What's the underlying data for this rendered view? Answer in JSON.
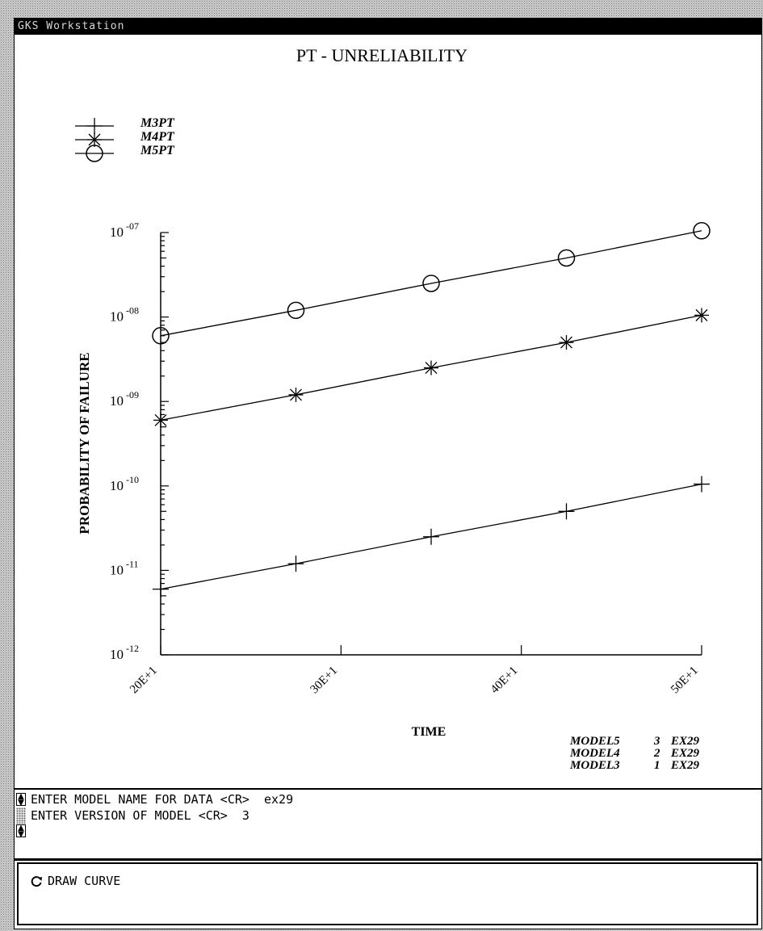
{
  "window": {
    "title": "GKS Workstation"
  },
  "chart_data": {
    "type": "line",
    "title": "PT - UNRELIABILITY",
    "xlabel": "TIME",
    "ylabel": "PROBABILITY OF FAILURE",
    "x_tick_labels": [
      "20E+1",
      "30E+1",
      "40E+1",
      "50E+1"
    ],
    "y_tick_labels": [
      {
        "base": "10",
        "exp": "-12"
      },
      {
        "base": "10",
        "exp": "-11"
      },
      {
        "base": "10",
        "exp": "-10"
      },
      {
        "base": "10",
        "exp": "-09"
      },
      {
        "base": "10",
        "exp": "-08"
      },
      {
        "base": "10",
        "exp": "-07"
      }
    ],
    "xlim": [
      200,
      500
    ],
    "ylim": [
      1e-12,
      1e-07
    ],
    "y_scale": "log",
    "x": [
      200,
      275,
      350,
      425,
      500
    ],
    "series": [
      {
        "name": "M3PT",
        "marker": "plus",
        "values": [
          6e-12,
          1.2e-11,
          2.5e-11,
          5e-11,
          1.05e-10
        ]
      },
      {
        "name": "M4PT",
        "marker": "star",
        "values": [
          6e-10,
          1.2e-09,
          2.5e-09,
          5e-09,
          1.05e-08
        ]
      },
      {
        "name": "M5PT",
        "marker": "circle",
        "values": [
          6e-09,
          1.2e-08,
          2.5e-08,
          5e-08,
          1.05e-07
        ]
      }
    ],
    "grid": false,
    "legend_position": "top-left",
    "model_notes": [
      {
        "model": "MODEL5",
        "version": "3",
        "data": "EX29"
      },
      {
        "model": "MODEL4",
        "version": "2",
        "data": "EX29"
      },
      {
        "model": "MODEL3",
        "version": "1",
        "data": "EX29"
      }
    ]
  },
  "console": {
    "line1": "ENTER MODEL NAME FOR DATA <CR>  ex29",
    "line2": "ENTER VERSION OF MODEL <CR>  3"
  },
  "panel": {
    "draw_curve_label": "DRAW CURVE",
    "icon": "refresh-icon"
  }
}
